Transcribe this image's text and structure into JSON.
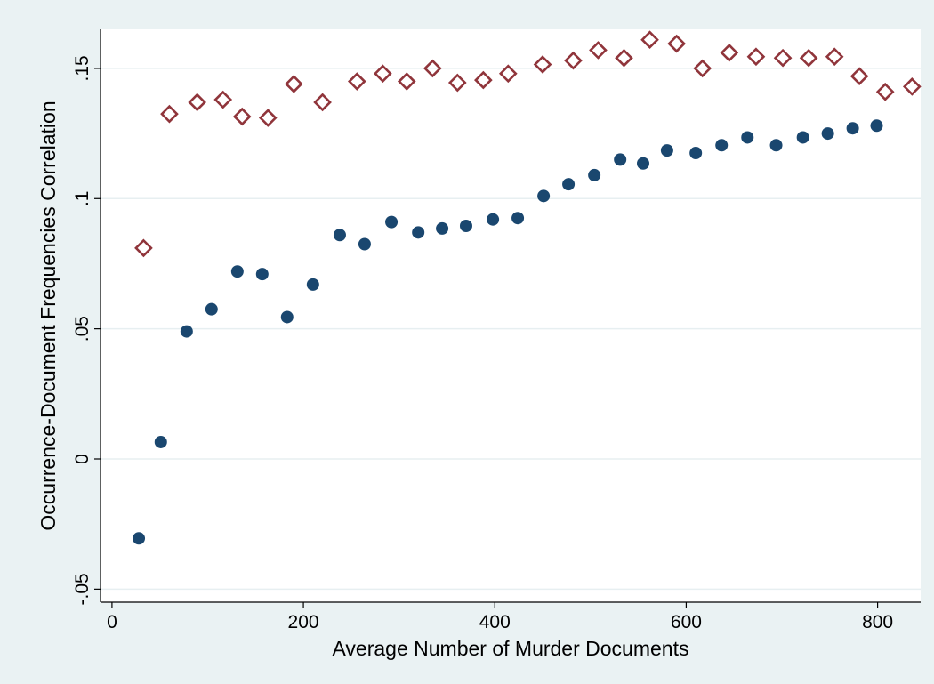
{
  "chart_data": {
    "type": "scatter",
    "title": "",
    "xlabel": "Average Number of Murder Documents",
    "ylabel": "Occurrence-Document Frequencies Correlation",
    "xlim": [
      -12,
      845
    ],
    "ylim": [
      -0.055,
      0.165
    ],
    "x_ticks": [
      0,
      200,
      400,
      600,
      800
    ],
    "x_tick_labels": [
      "0",
      "200",
      "400",
      "600",
      "800"
    ],
    "y_ticks": [
      -0.05,
      0,
      0.05,
      0.1,
      0.15
    ],
    "y_tick_labels": [
      "-.05",
      "0",
      ".05",
      ".1",
      ".15"
    ],
    "grid": "horizontal",
    "legend": "none",
    "series": [
      {
        "marker": "circle",
        "color": "#1a476f",
        "points": [
          [
            28,
            -0.0305
          ],
          [
            51,
            0.0065
          ],
          [
            78,
            0.049
          ],
          [
            104,
            0.0575
          ],
          [
            131,
            0.072
          ],
          [
            157,
            0.071
          ],
          [
            183,
            0.0545
          ],
          [
            210,
            0.067
          ],
          [
            238,
            0.086
          ],
          [
            264,
            0.0825
          ],
          [
            292,
            0.091
          ],
          [
            320,
            0.087
          ],
          [
            345,
            0.0885
          ],
          [
            370,
            0.0895
          ],
          [
            398,
            0.092
          ],
          [
            424,
            0.0925
          ],
          [
            451,
            0.101
          ],
          [
            477,
            0.1055
          ],
          [
            504,
            0.109
          ],
          [
            531,
            0.115
          ],
          [
            555,
            0.1135
          ],
          [
            580,
            0.1185
          ],
          [
            610,
            0.1175
          ],
          [
            637,
            0.1205
          ],
          [
            664,
            0.1235
          ],
          [
            694,
            0.1205
          ],
          [
            722,
            0.1235
          ],
          [
            748,
            0.125
          ],
          [
            774,
            0.127
          ],
          [
            799,
            0.128
          ]
        ]
      },
      {
        "marker": "hollow-diamond",
        "color": "#90353b",
        "points": [
          [
            33,
            0.081
          ],
          [
            60,
            0.1325
          ],
          [
            89,
            0.137
          ],
          [
            116,
            0.138
          ],
          [
            136,
            0.1315
          ],
          [
            163,
            0.131
          ],
          [
            190,
            0.144
          ],
          [
            220,
            0.137
          ],
          [
            256,
            0.145
          ],
          [
            283,
            0.148
          ],
          [
            308,
            0.145
          ],
          [
            335,
            0.15
          ],
          [
            361,
            0.1445
          ],
          [
            388,
            0.1455
          ],
          [
            414,
            0.148
          ],
          [
            450,
            0.1515
          ],
          [
            482,
            0.153
          ],
          [
            508,
            0.157
          ],
          [
            535,
            0.154
          ],
          [
            562,
            0.161
          ],
          [
            590,
            0.1595
          ],
          [
            617,
            0.15
          ],
          [
            645,
            0.156
          ],
          [
            673,
            0.1545
          ],
          [
            701,
            0.154
          ],
          [
            728,
            0.154
          ],
          [
            755,
            0.1545
          ],
          [
            781,
            0.147
          ],
          [
            808,
            0.141
          ],
          [
            836,
            0.143
          ]
        ]
      }
    ]
  }
}
